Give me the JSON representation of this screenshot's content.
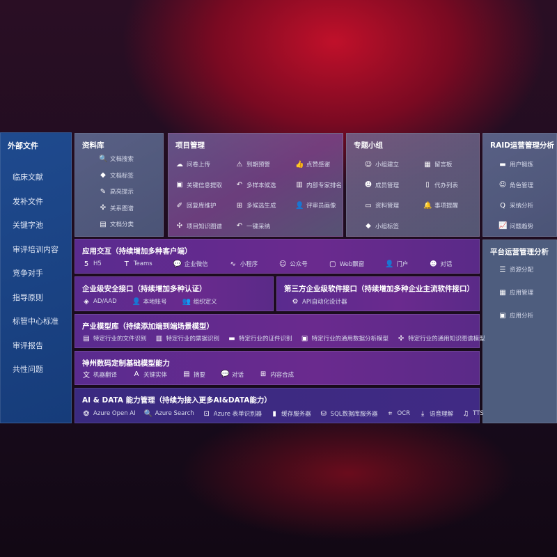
{
  "sidebar": {
    "title": "外部文件",
    "items": [
      "临床文献",
      "发补文件",
      "关键字池",
      "审评培训内容",
      "竞争对手",
      "指导原则",
      "标管中心标准",
      "审评报告",
      "共性问题"
    ]
  },
  "library": {
    "title": "资料库",
    "items": [
      {
        "icon": "doc-search-icon",
        "g": "🔍",
        "label": "文档搜索"
      },
      {
        "icon": "tag-icon",
        "g": "◆",
        "label": "文档标签"
      },
      {
        "icon": "pen-icon",
        "g": "✎",
        "label": "高亮提示"
      },
      {
        "icon": "graph-icon",
        "g": "✣",
        "label": "关系图谱"
      },
      {
        "icon": "doc-stack-icon",
        "g": "▤",
        "label": "文档分类"
      }
    ]
  },
  "project": {
    "title": "项目管理",
    "items": [
      {
        "icon": "cloud-upload-icon",
        "g": "☁",
        "label": "问卷上传"
      },
      {
        "icon": "alarm-icon",
        "g": "⚠",
        "label": "到期预警"
      },
      {
        "icon": "thumbs-up-icon",
        "g": "👍",
        "label": "点赞感谢"
      },
      {
        "icon": "window-icon",
        "g": "▣",
        "label": "关键信息提取"
      },
      {
        "icon": "reply-icon",
        "g": "↶",
        "label": "多样本候选"
      },
      {
        "icon": "rank-icon",
        "g": "▥",
        "label": "内部专家排名"
      },
      {
        "icon": "edit-icon",
        "g": "✐",
        "label": "回复库维护"
      },
      {
        "icon": "puzzle-icon",
        "g": "⊞",
        "label": "多候选生成"
      },
      {
        "icon": "user-icon",
        "g": "👤",
        "label": "评审员画像"
      },
      {
        "icon": "graph-icon",
        "g": "✣",
        "label": "项目知识图谱"
      },
      {
        "icon": "reply-icon",
        "g": "↶",
        "label": "一键采纳"
      }
    ]
  },
  "group": {
    "title": "专题小组",
    "items": [
      {
        "icon": "users-icon",
        "g": "☺",
        "label": "小组建立"
      },
      {
        "icon": "bbs-icon",
        "g": "▦",
        "label": "留言板"
      },
      {
        "icon": "user-add-icon",
        "g": "☻",
        "label": "成员管理"
      },
      {
        "icon": "clipboard-icon",
        "g": "▯",
        "label": "代办列表"
      },
      {
        "icon": "folder-icon",
        "g": "▭",
        "label": "资料管理"
      },
      {
        "icon": "bell-icon",
        "g": "🔔",
        "label": "事项提醒"
      },
      {
        "icon": "tag-icon",
        "g": "◆",
        "label": "小组标签"
      }
    ]
  },
  "raid": {
    "title": "RAID运营管理分析",
    "items": [
      {
        "icon": "id-card-icon",
        "g": "▬",
        "label": "用户锻炼"
      },
      {
        "icon": "users-icon",
        "g": "☺",
        "label": "角色管理"
      },
      {
        "icon": "qa-icon",
        "g": "Q",
        "label": "采纳分析"
      },
      {
        "icon": "trend-icon",
        "g": "📈",
        "label": "问题趋势"
      }
    ]
  },
  "platform": {
    "title": "平台运营管理分析",
    "items": [
      {
        "icon": "checklist-icon",
        "g": "☰",
        "label": "资源分配"
      },
      {
        "icon": "apps-icon",
        "g": "▦",
        "label": "应用管理"
      },
      {
        "icon": "analytics-icon",
        "g": "▣",
        "label": "应用分析"
      }
    ]
  },
  "app": {
    "title": "应用交互（持续增加多种客户端）",
    "items": [
      {
        "icon": "html5-icon",
        "g": "5",
        "label": "H5"
      },
      {
        "icon": "teams-icon",
        "g": "T",
        "label": "Teams"
      },
      {
        "icon": "wechat-work-icon",
        "g": "💬",
        "label": "企业微信"
      },
      {
        "icon": "miniprogram-icon",
        "g": "∿",
        "label": "小程序"
      },
      {
        "icon": "official-account-icon",
        "g": "☺",
        "label": "公众号"
      },
      {
        "icon": "web-window-icon",
        "g": "▢",
        "label": "Web飘窗"
      },
      {
        "icon": "portal-icon",
        "g": "👤",
        "label": "门户"
      },
      {
        "icon": "chat-users-icon",
        "g": "☻",
        "label": "对话"
      }
    ]
  },
  "security": {
    "title": "企业级安全接口（持续增加多种认证）",
    "items": [
      {
        "icon": "ad-icon",
        "g": "◈",
        "label": "AD/AAD"
      },
      {
        "icon": "local-account-icon",
        "g": "👤",
        "label": "本地账号"
      },
      {
        "icon": "org-icon",
        "g": "👥",
        "label": "组织定义"
      }
    ]
  },
  "thirdparty": {
    "title": "第三方企业级软件接口（持续增加多种企业主流软件接口）",
    "items": [
      {
        "icon": "api-gear-icon",
        "g": "⚙",
        "label": "API自动化设计器"
      }
    ]
  },
  "industry": {
    "title": "产业模型库（持续添加端到端场景模型）",
    "items": [
      {
        "icon": "file-icon",
        "g": "▤",
        "label": "特定行业的文件识别"
      },
      {
        "icon": "receipt-icon",
        "g": "▥",
        "label": "特定行业的票据识别"
      },
      {
        "icon": "id-card-icon",
        "g": "▬",
        "label": "特定行业的证件识别"
      },
      {
        "icon": "chart-icon",
        "g": "▣",
        "label": "特定行业的通用数据分析模型"
      },
      {
        "icon": "graph-icon",
        "g": "✣",
        "label": "特定行业的通用知识图谱模型"
      }
    ]
  },
  "base": {
    "title": "神州数码定制基础模型能力",
    "items": [
      {
        "icon": "translate-icon",
        "g": "文",
        "label": "机器翻译"
      },
      {
        "icon": "entity-icon",
        "g": "A",
        "label": "关键实体"
      },
      {
        "icon": "summary-icon",
        "g": "▤",
        "label": "摘要"
      },
      {
        "icon": "chat-icon",
        "g": "💬",
        "label": "对话"
      },
      {
        "icon": "compose-icon",
        "g": "⊞",
        "label": "内容合成"
      }
    ]
  },
  "ai": {
    "title": "AI & DATA 能力管理（持续为接入更多AI&DATA能力）",
    "items": [
      {
        "icon": "openai-icon",
        "g": "❂",
        "label": "Azure Open AI"
      },
      {
        "icon": "search-doc-icon",
        "g": "🔍",
        "label": "Azure Search"
      },
      {
        "icon": "form-recognizer-icon",
        "g": "⊡",
        "label": "Azure 表单识别器"
      },
      {
        "icon": "cache-icon",
        "g": "▮",
        "label": "缓存服务器"
      },
      {
        "icon": "sql-icon",
        "g": "⛁",
        "label": "SQL数据库服务器"
      },
      {
        "icon": "ocr-icon",
        "g": "⌗",
        "label": "OCR"
      },
      {
        "icon": "speech-icon",
        "g": "⤓",
        "label": "语音理解"
      },
      {
        "icon": "tts-icon",
        "g": "♫",
        "label": "TTS"
      }
    ]
  }
}
